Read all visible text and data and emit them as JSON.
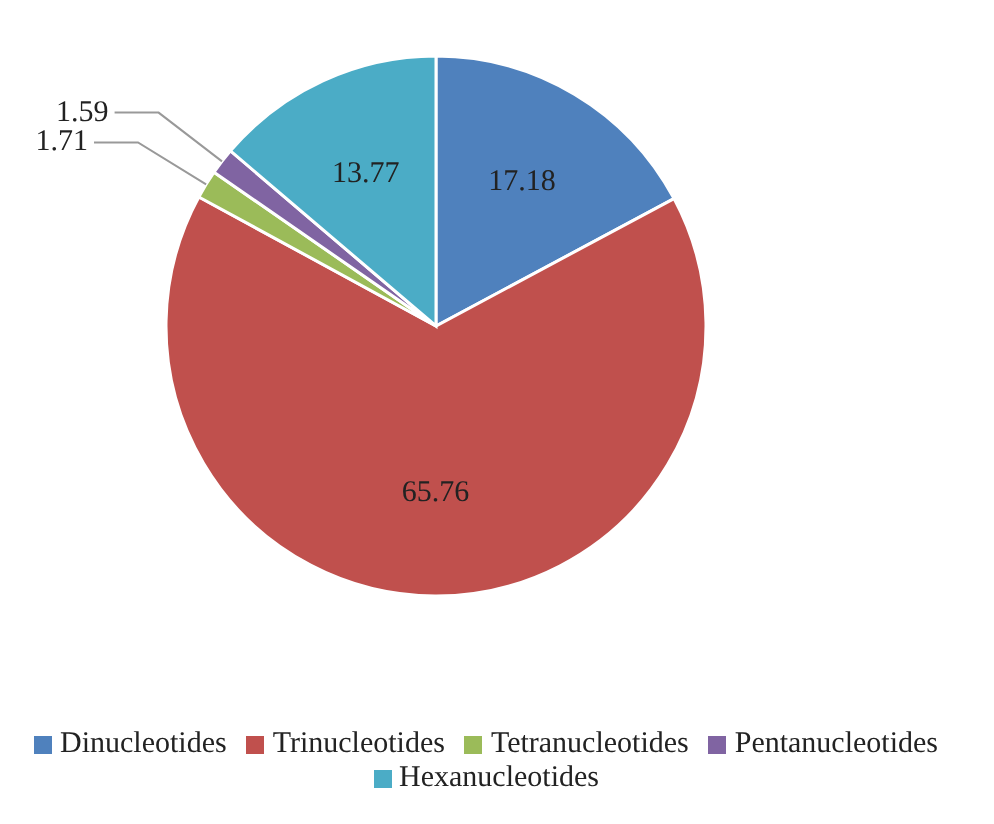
{
  "chart_data": {
    "type": "pie",
    "categories": [
      "Dinucleotides",
      "Trinucleotides",
      "Tetranucleotides",
      "Pentanucleotides",
      "Hexanucleotides"
    ],
    "values": [
      17.18,
      65.76,
      1.71,
      1.59,
      13.77
    ],
    "colors": [
      "#4f81bd",
      "#c0504d",
      "#9bbb59",
      "#8064a2",
      "#4bacc6"
    ],
    "data_labels": true,
    "legend": "bottom"
  }
}
